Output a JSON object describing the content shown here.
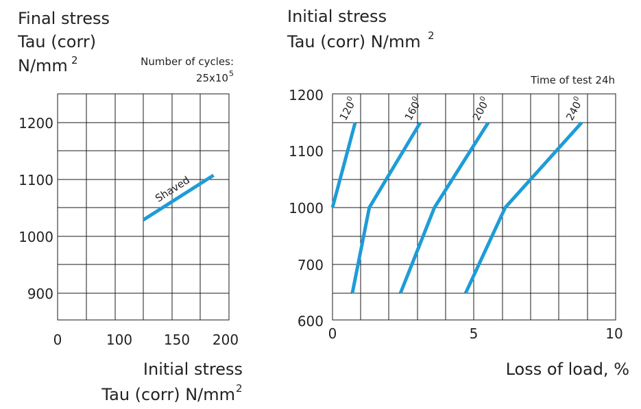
{
  "left_chart": {
    "ytitle": [
      "Final stress",
      "Tau (corr)",
      "N/mm",
      "2"
    ],
    "cycles": [
      "Number of cycles:",
      "25x10",
      "5"
    ],
    "xtitle": [
      "Initial stress",
      "Tau (corr) N/mm",
      "2"
    ]
  },
  "right_chart": {
    "ytitle": [
      "Initial stress",
      "Tau (corr) N/mm",
      "2"
    ],
    "time_note": "Time of test 24h",
    "xtitle": "Loss of load, %"
  },
  "chart_data": [
    {
      "type": "line",
      "xlim": [
        0,
        200
      ],
      "ylim": [
        850,
        1250
      ],
      "x_ticks": [
        0,
        100,
        150,
        200
      ],
      "y_ticks": [
        1200,
        1100,
        1000,
        900
      ],
      "grid": true,
      "series": [
        {
          "name": "Shaved",
          "label_kind": "inline",
          "points": [
            [
              100,
              1027
            ],
            [
              182,
              1106
            ]
          ]
        }
      ]
    },
    {
      "type": "line",
      "xlim": [
        0,
        10
      ],
      "y_ticks": [
        1200,
        1100,
        1000,
        700,
        600
      ],
      "x_ticks": [
        0,
        5,
        10
      ],
      "grid": true,
      "series": [
        {
          "name": "120",
          "label_kind": "degree",
          "points": [
            [
              0.7,
              650
            ],
            [
              1.3,
              1000
            ],
            [
              0.0,
              1000
            ],
            [
              0.8,
              1150
            ]
          ]
        },
        {
          "name": "160",
          "label_kind": "degree",
          "points": [
            [
              0.7,
              650
            ],
            [
              1.3,
              1000
            ],
            [
              3.1,
              1150
            ]
          ]
        },
        {
          "name": "200",
          "label_kind": "degree",
          "points": [
            [
              2.4,
              650
            ],
            [
              3.6,
              1000
            ],
            [
              5.5,
              1150
            ]
          ]
        },
        {
          "name": "240",
          "label_kind": "degree",
          "points": [
            [
              4.7,
              650
            ],
            [
              6.1,
              1000
            ],
            [
              8.8,
              1150
            ]
          ]
        }
      ]
    }
  ]
}
